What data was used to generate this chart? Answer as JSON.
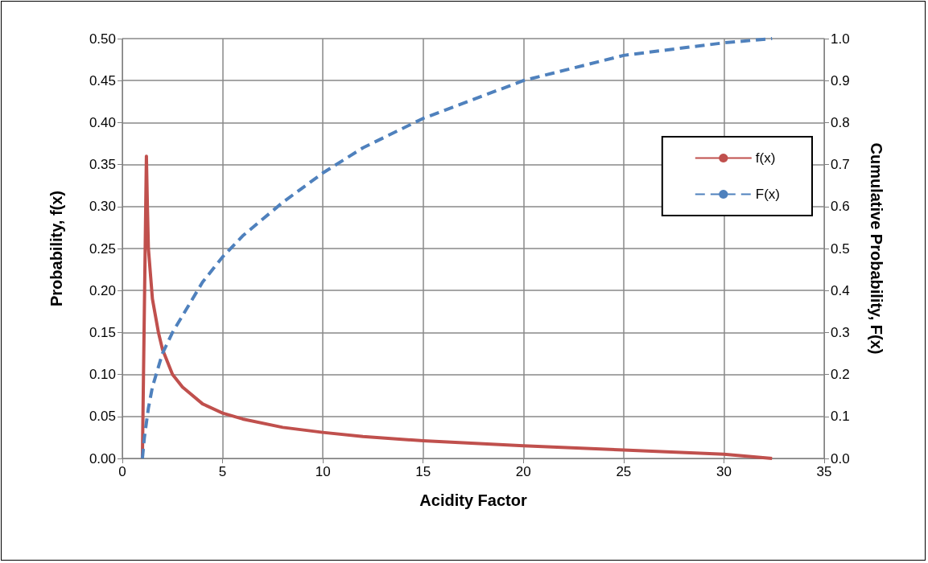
{
  "chart_data": {
    "type": "line",
    "xlabel": "Acidity Factor",
    "ylabel": "Probability, f(x)",
    "y2label": "Cumulative Probability, F(x)",
    "series": [
      {
        "name": "f(x)",
        "color": "#c0504d",
        "line_style": "solid",
        "x": [
          1.0,
          1.1,
          1.2,
          1.25,
          1.3,
          1.5,
          1.8,
          2,
          2.5,
          3,
          4,
          5,
          6,
          8,
          10,
          12,
          15,
          20,
          25,
          30,
          32.4
        ],
        "values": [
          0,
          0.18,
          0.36,
          0.3,
          0.25,
          0.19,
          0.15,
          0.13,
          0.1,
          0.085,
          0.065,
          0.054,
          0.047,
          0.037,
          0.031,
          0.026,
          0.021,
          0.015,
          0.01,
          0.005,
          0
        ]
      },
      {
        "name": "F(x)",
        "color": "#4f81bd",
        "line_style": "dashed",
        "axis": "y2",
        "x": [
          1.0,
          1.1,
          1.3,
          1.5,
          2,
          2.5,
          3,
          4,
          5,
          6,
          8,
          10,
          12,
          15,
          20,
          25,
          30,
          32.4
        ],
        "values": [
          0,
          0.05,
          0.12,
          0.17,
          0.25,
          0.3,
          0.34,
          0.42,
          0.48,
          0.53,
          0.61,
          0.68,
          0.74,
          0.81,
          0.9,
          0.96,
          0.99,
          1.0
        ]
      }
    ],
    "xlim": [
      0,
      35
    ],
    "xticks": [
      0,
      5,
      10,
      15,
      20,
      25,
      30,
      35
    ],
    "ylim": [
      0,
      0.5
    ],
    "yticks": [
      {
        "value": 0,
        "label": "0.00"
      },
      {
        "value": 0.05,
        "label": "0.05"
      },
      {
        "value": 0.1,
        "label": "0.10"
      },
      {
        "value": 0.15,
        "label": "0.15"
      },
      {
        "value": 0.2,
        "label": "0.20"
      },
      {
        "value": 0.25,
        "label": "0.25"
      },
      {
        "value": 0.3,
        "label": "0.30"
      },
      {
        "value": 0.35,
        "label": "0.35"
      },
      {
        "value": 0.4,
        "label": "0.40"
      },
      {
        "value": 0.45,
        "label": "0.45"
      },
      {
        "value": 0.5,
        "label": "0.50"
      }
    ],
    "y2lim": [
      0,
      1
    ],
    "y2ticks": [
      {
        "value": 0,
        "label": "0.0"
      },
      {
        "value": 0.1,
        "label": "0.1"
      },
      {
        "value": 0.2,
        "label": "0.2"
      },
      {
        "value": 0.3,
        "label": "0.3"
      },
      {
        "value": 0.4,
        "label": "0.4"
      },
      {
        "value": 0.5,
        "label": "0.5"
      },
      {
        "value": 0.6,
        "label": "0.6"
      },
      {
        "value": 0.7,
        "label": "0.7"
      },
      {
        "value": 0.8,
        "label": "0.8"
      },
      {
        "value": 0.9,
        "label": "0.9"
      },
      {
        "value": 1,
        "label": "1.0"
      }
    ],
    "grid": true,
    "legend": "right",
    "marker": "none"
  }
}
